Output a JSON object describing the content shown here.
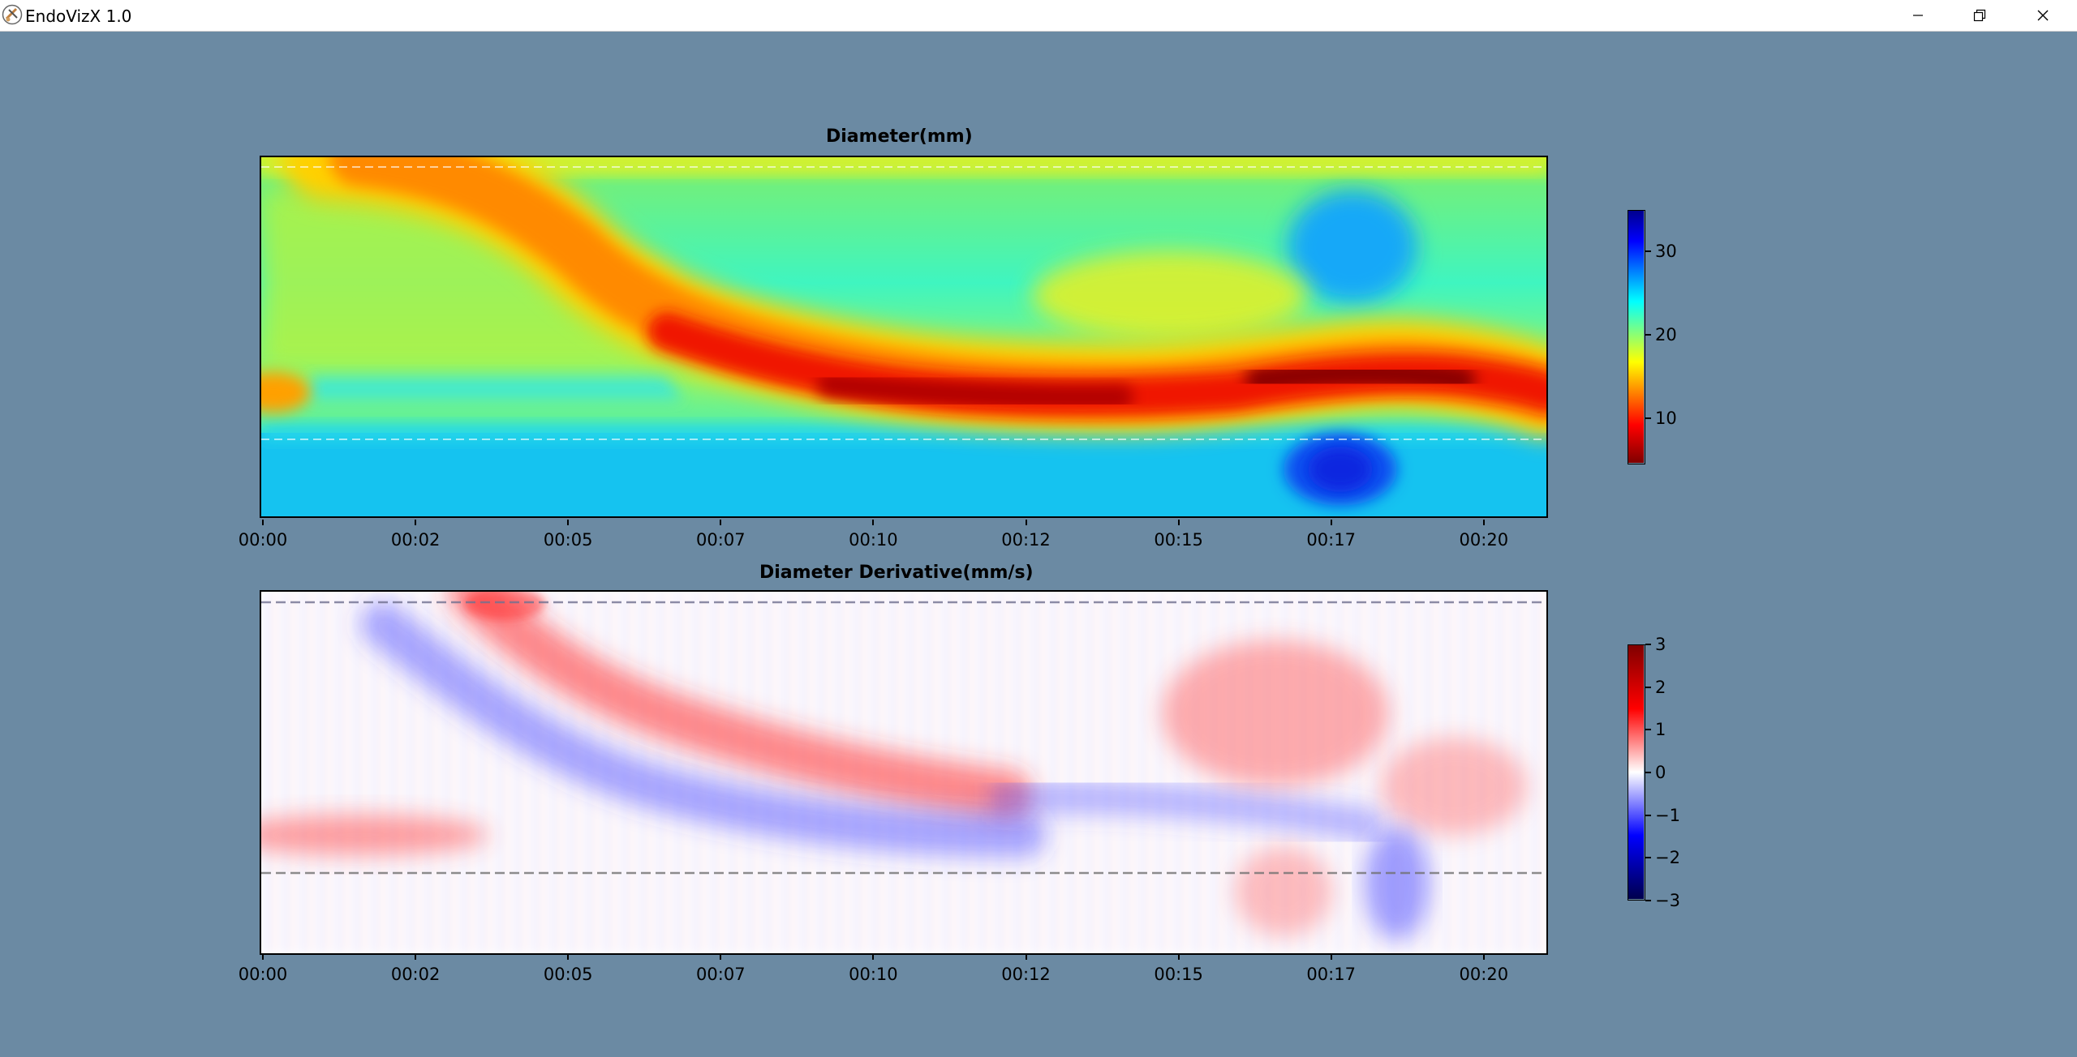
{
  "window": {
    "title": "EndoVizX 1.0",
    "icon": "endovizx-logo-icon",
    "controls": [
      "minimize-icon",
      "restore-icon",
      "close-icon"
    ]
  },
  "chart_data": [
    {
      "type": "heatmap",
      "title": "Diameter(mm)",
      "x_tick_labels": [
        "00:00",
        "00:02",
        "00:05",
        "00:07",
        "00:10",
        "00:12",
        "00:15",
        "00:17",
        "00:20"
      ],
      "colormap": "jet_r",
      "colorbar_ticks": [
        "10",
        "20",
        "30"
      ],
      "colorbar_range": [
        4.5,
        35
      ],
      "reference_lines": "dashed, top and lower",
      "grid": false
    },
    {
      "type": "heatmap",
      "title": "Diameter Derivative(mm/s)",
      "x_tick_labels": [
        "00:00",
        "00:02",
        "00:05",
        "00:07",
        "00:10",
        "00:12",
        "00:15",
        "00:17",
        "00:20"
      ],
      "colormap": "seismic",
      "colorbar_ticks": [
        "3",
        "2",
        "1",
        "0",
        "−1",
        "−2",
        "−3"
      ],
      "colorbar_range": [
        -3,
        3
      ],
      "reference_lines": "dashed, top and lower",
      "grid": false
    }
  ]
}
